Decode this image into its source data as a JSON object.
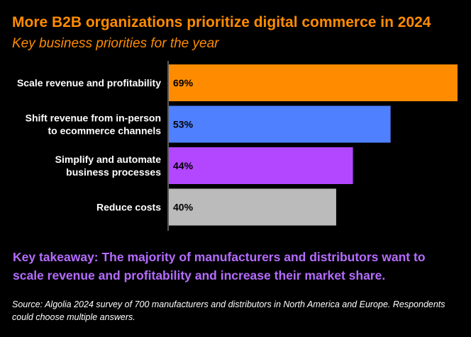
{
  "header": {
    "title": "More B2B organizations prioritize digital commerce in 2024",
    "subtitle": "Key business priorities for the year"
  },
  "chart_data": {
    "type": "bar",
    "orientation": "horizontal",
    "categories": [
      [
        "Scale revenue and profitability"
      ],
      [
        "Shift revenue from in-person",
        "to ecommerce channels"
      ],
      [
        "Simplify and automate",
        "business processes"
      ],
      [
        "Reduce costs"
      ]
    ],
    "values": [
      69,
      53,
      44,
      40
    ],
    "value_labels": [
      "69%",
      "53%",
      "44%",
      "40%"
    ],
    "colors": [
      "#ff8c00",
      "#4f80ff",
      "#b347ff",
      "#bbbbbb"
    ],
    "xlim": [
      0,
      69
    ],
    "grid": false,
    "legend": "none"
  },
  "footer": {
    "takeaway": "Key takeaway: The majority of manufacturers and distributors want to scale revenue and profitability and increase their market share.",
    "source": "Source: Algolia 2024 survey of 700 manufacturers and distributors in North America and Europe. Respondents could choose multiple answers."
  }
}
